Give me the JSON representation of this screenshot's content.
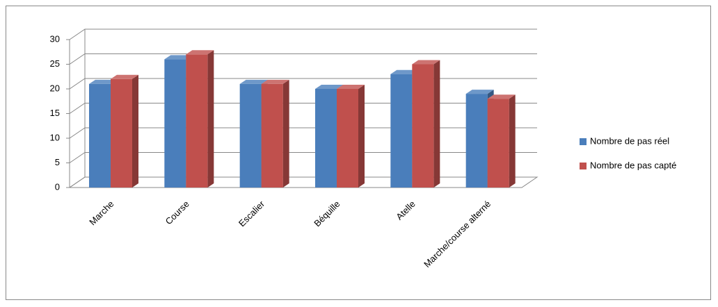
{
  "chart_data": {
    "type": "bar3d",
    "categories": [
      "Marche",
      "Course",
      "Escalier",
      "Béquille",
      "Atelle",
      "Marche/course alterné"
    ],
    "series": [
      {
        "name": "Nombre de pas réel",
        "color": "#4a7ebb",
        "values": [
          21,
          26,
          21,
          20,
          23,
          19
        ]
      },
      {
        "name": "Nombre de pas capté",
        "color": "#c0504d",
        "values": [
          22,
          27,
          21,
          20,
          25,
          18
        ]
      }
    ],
    "ylim": [
      0,
      30
    ],
    "yticks": [
      0,
      5,
      10,
      15,
      20,
      25,
      30
    ],
    "grid": true,
    "legend": "right"
  }
}
